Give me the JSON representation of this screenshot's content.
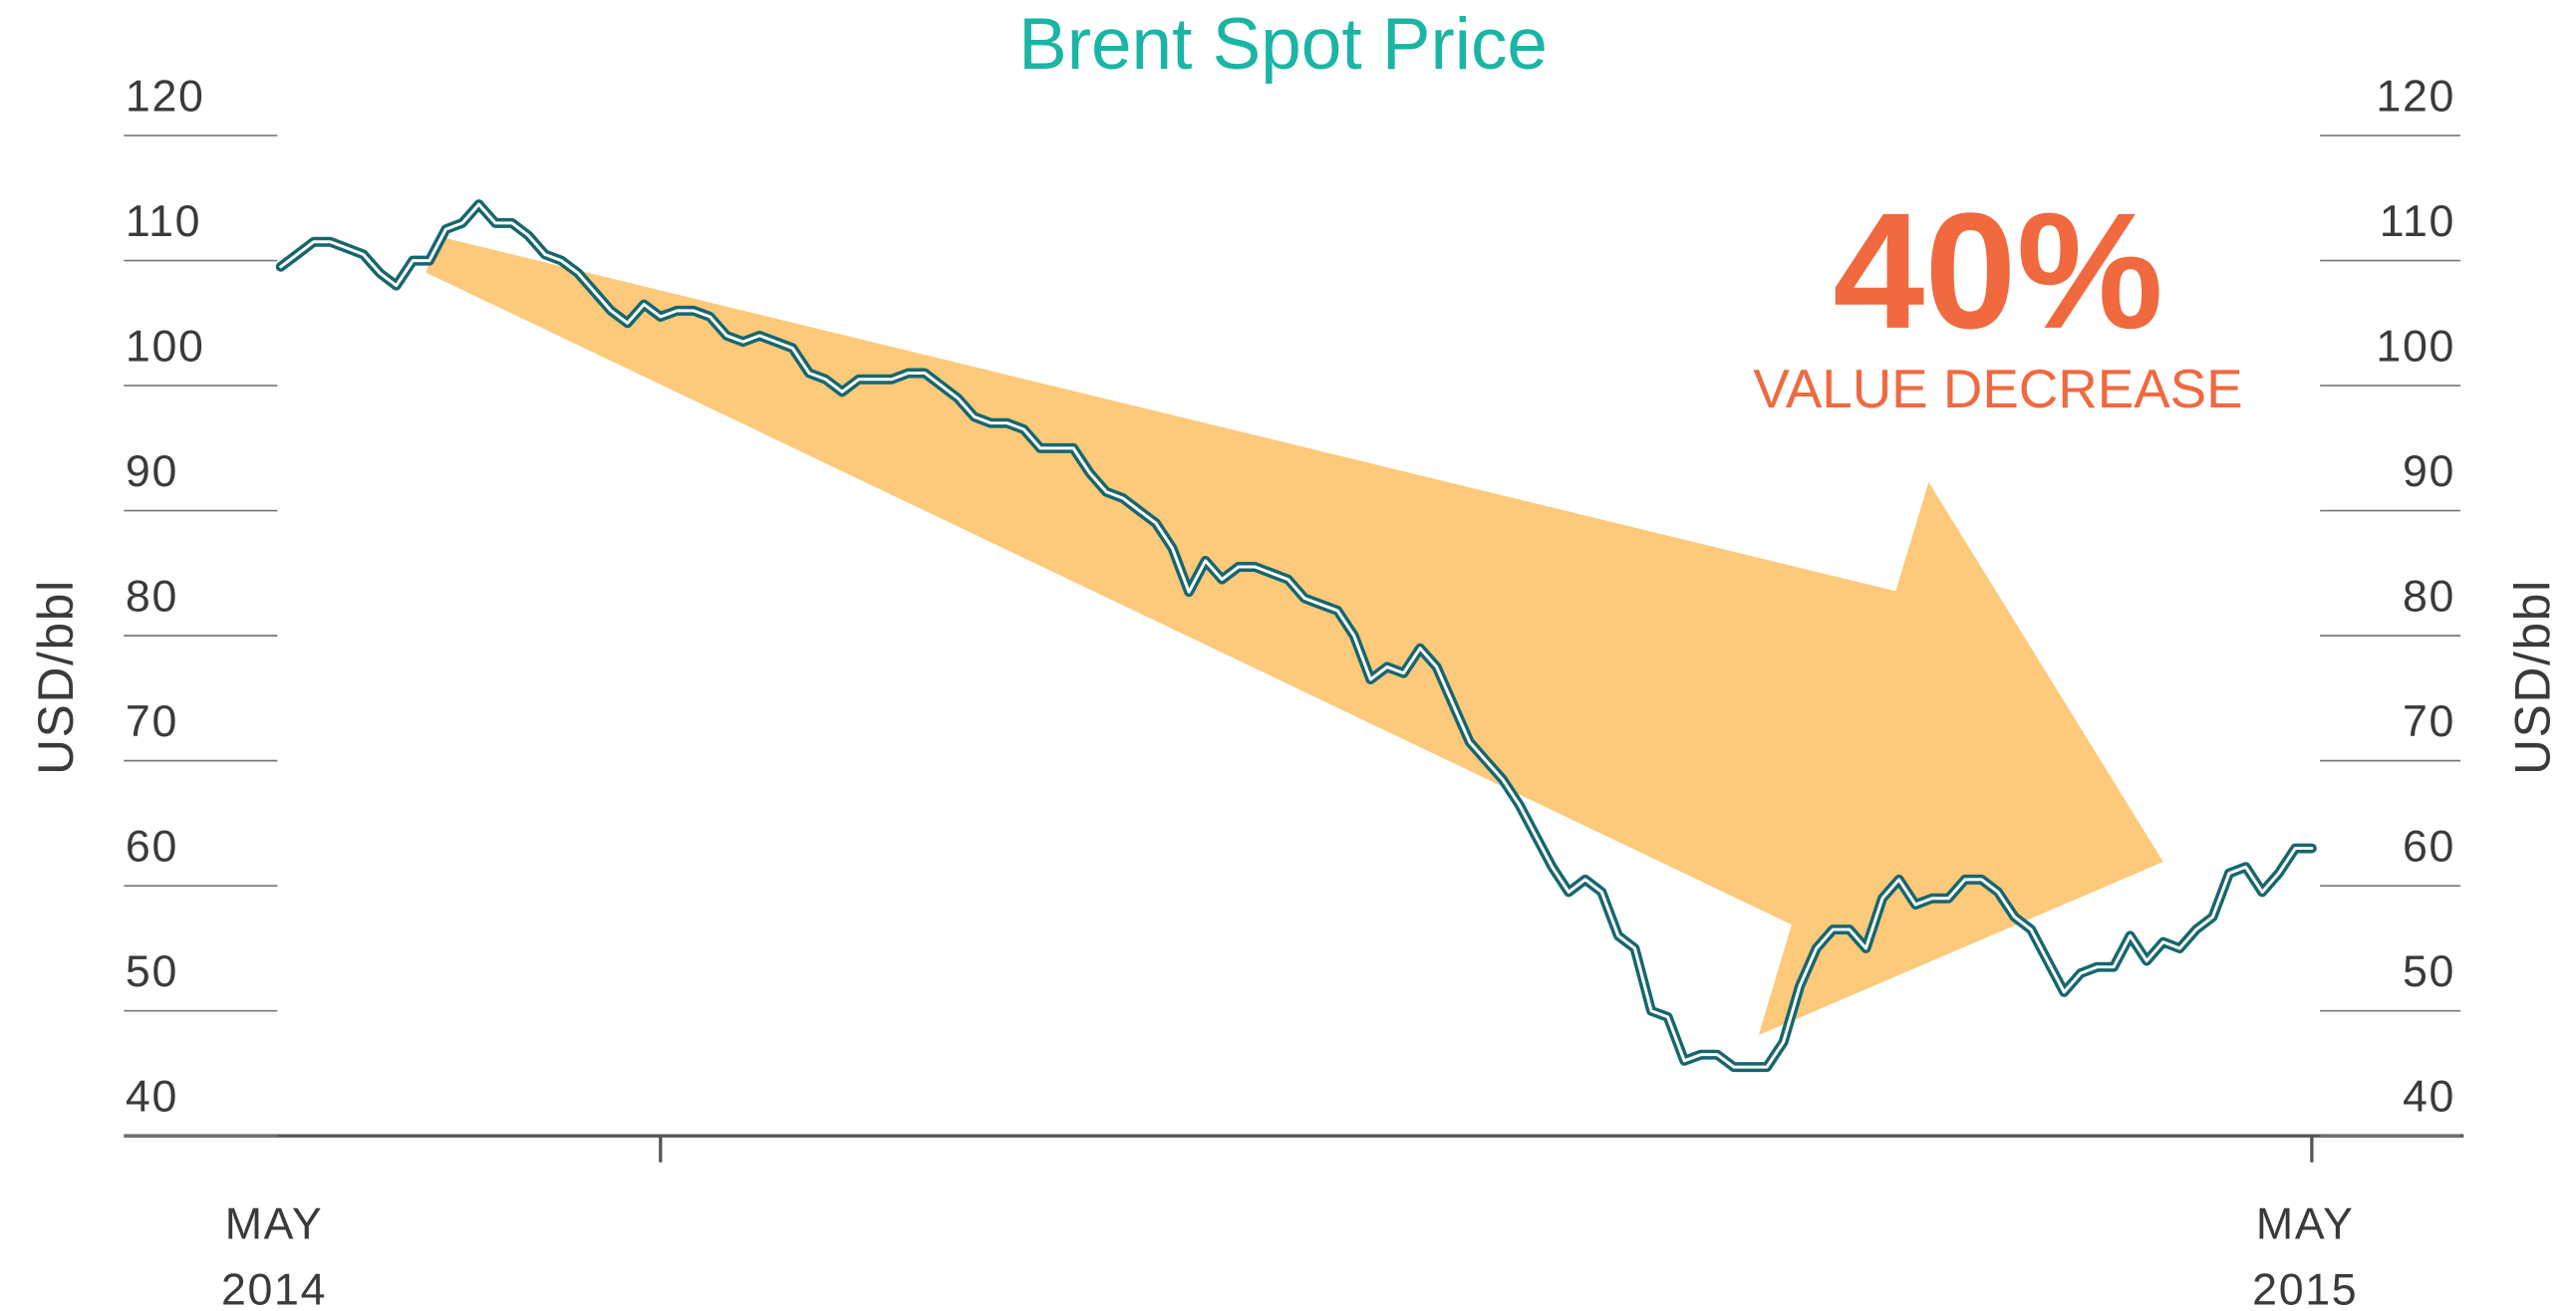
{
  "chart_data": {
    "type": "line",
    "title": "Brent Spot Price",
    "ylabel": "USD/bbl",
    "y2label": "USD/bbl",
    "annotation": {
      "big": "40%",
      "text": "VALUE DECREASE",
      "color": "#f0693f"
    },
    "title_color": "#1ab5a5",
    "arrow_color": "#fdc97a",
    "xlim": [
      0,
      123
    ],
    "xticks": [
      {
        "value": 0,
        "label": [
          "MAY",
          "2014"
        ]
      },
      {
        "value": 23,
        "label": null
      },
      {
        "value": 123,
        "label": [
          "MAY",
          "2015"
        ]
      }
    ],
    "ylim": [
      40,
      120
    ],
    "yticks": [
      40,
      50,
      60,
      70,
      80,
      90,
      100,
      110,
      120
    ],
    "y2lim": [
      40,
      120
    ],
    "y2ticks": [
      40,
      50,
      60,
      70,
      80,
      90,
      100,
      110,
      120
    ],
    "grid": true,
    "series": [
      {
        "name": "Brent",
        "color": "#17666e",
        "values": [
          109.5,
          110.5,
          111.5,
          111.5,
          111,
          110.5,
          109,
          108,
          110,
          110,
          112.5,
          113,
          114.5,
          113,
          113,
          112,
          110.5,
          110,
          109,
          107.5,
          106,
          105,
          106.5,
          105.5,
          106,
          106,
          105.5,
          104,
          103.5,
          104,
          103.5,
          103,
          101,
          100.5,
          99.5,
          100.5,
          100.5,
          100.5,
          101,
          101,
          100,
          99,
          97.5,
          97,
          97,
          96.5,
          95,
          95,
          95,
          93,
          91.5,
          91,
          90,
          89,
          87,
          83.5,
          86,
          84.5,
          85.5,
          85.5,
          85,
          84.5,
          83,
          82.5,
          82,
          80,
          76.5,
          77.5,
          77,
          79,
          77.5,
          74.5,
          71.5,
          70,
          68.5,
          66.5,
          64,
          61.5,
          59.5,
          60.5,
          59.5,
          56,
          55,
          50,
          49.5,
          46,
          46.5,
          46.5,
          45.5,
          45.5,
          45.5,
          47.5,
          52,
          55,
          56.5,
          56.5,
          55,
          59,
          60.5,
          58.5,
          59,
          59,
          60.5,
          60.5,
          59.5,
          57.5,
          56.5,
          54,
          51.5,
          53,
          53.5,
          53.5,
          56,
          54,
          55.5,
          55,
          56.5,
          57.5,
          61,
          61.5,
          59.5,
          61,
          63,
          63
        ]
      }
    ]
  }
}
